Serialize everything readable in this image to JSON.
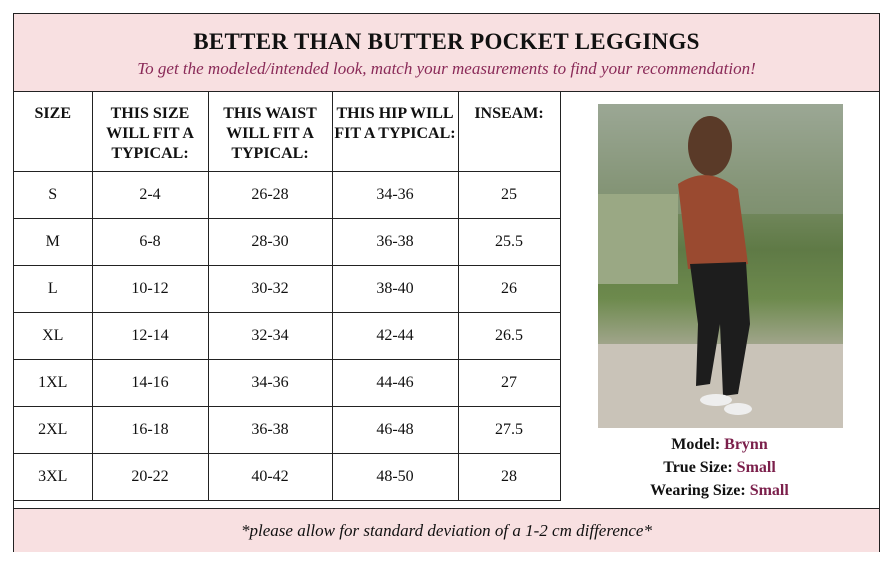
{
  "header": {
    "title": "BETTER THAN BUTTER POCKET LEGGINGS",
    "subtitle": "To get the modeled/intended look, match your measurements to find your recommendation!"
  },
  "table": {
    "columns": [
      "SIZE",
      "THIS SIZE WILL FIT A TYPICAL:",
      "THIS WAIST WILL FIT A TYPICAL:",
      "THIS HIP WILL FIT A TYPICAL:",
      "INSEAM:"
    ],
    "rows": [
      [
        "S",
        "2-4",
        "26-28",
        "34-36",
        "25"
      ],
      [
        "M",
        "6-8",
        "28-30",
        "36-38",
        "25.5"
      ],
      [
        "L",
        "10-12",
        "30-32",
        "38-40",
        "26"
      ],
      [
        "XL",
        "12-14",
        "32-34",
        "42-44",
        "26.5"
      ],
      [
        "1XL",
        "14-16",
        "34-36",
        "44-46",
        "27"
      ],
      [
        "2XL",
        "16-18",
        "36-38",
        "46-48",
        "27.5"
      ],
      [
        "3XL",
        "20-22",
        "40-42",
        "48-50",
        "28"
      ]
    ]
  },
  "model": {
    "model_label": "Model:",
    "model_value": "Brynn",
    "true_label": "True Size:",
    "true_value": "Small",
    "wearing_label": "Wearing Size:",
    "wearing_value": "Small"
  },
  "footer": {
    "note": "*please allow for standard deviation of a 1-2 cm difference*"
  },
  "colors": {
    "header_bg": "#f8e0e1",
    "accent": "#7b1f4b"
  }
}
